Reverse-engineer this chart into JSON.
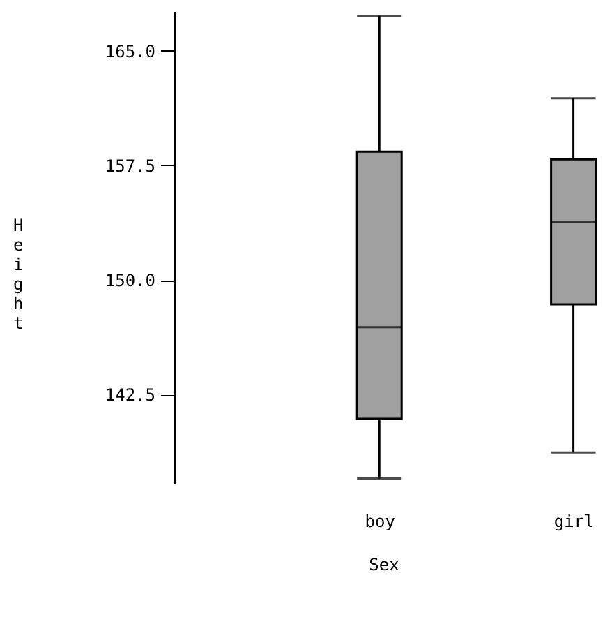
{
  "chart_data": {
    "type": "box",
    "xlabel": "Sex",
    "ylabel": "Height",
    "categories": [
      "boy",
      "girl"
    ],
    "boxes": [
      {
        "low": 137.0,
        "q1": 140.9,
        "median": 146.9,
        "q3": 158.4,
        "high": 167.3
      },
      {
        "low": 138.7,
        "q1": 148.4,
        "median": 153.8,
        "q3": 157.9,
        "high": 161.9
      }
    ],
    "color": "#a0a0a0",
    "ylim": [
      136.7,
      167.6
    ],
    "yticks": [
      {
        "value": 142.5,
        "label": "142.5"
      },
      {
        "value": 150,
        "label": "150.0"
      },
      {
        "value": 157.5,
        "label": "157.5"
      },
      {
        "value": 165,
        "label": "165.0"
      }
    ],
    "grid": false
  }
}
